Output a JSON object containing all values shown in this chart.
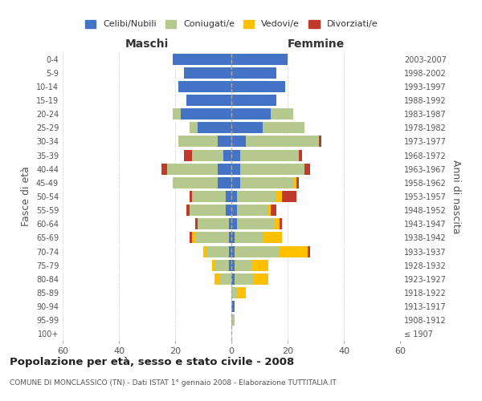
{
  "age_groups": [
    "100+",
    "95-99",
    "90-94",
    "85-89",
    "80-84",
    "75-79",
    "70-74",
    "65-69",
    "60-64",
    "55-59",
    "50-54",
    "45-49",
    "40-44",
    "35-39",
    "30-34",
    "25-29",
    "20-24",
    "15-19",
    "10-14",
    "5-9",
    "0-4"
  ],
  "birth_years": [
    "≤ 1907",
    "1908-1912",
    "1913-1917",
    "1918-1922",
    "1923-1927",
    "1928-1932",
    "1933-1937",
    "1938-1942",
    "1943-1947",
    "1948-1952",
    "1953-1957",
    "1958-1962",
    "1963-1967",
    "1968-1972",
    "1973-1977",
    "1978-1982",
    "1983-1987",
    "1988-1992",
    "1993-1997",
    "1998-2002",
    "2003-2007"
  ],
  "colors": {
    "celibi": "#4472c4",
    "coniugati": "#b5c98e",
    "vedovi": "#ffc000",
    "divorziati": "#c0392b"
  },
  "maschi": {
    "celibi": [
      0,
      0,
      0,
      0,
      0,
      1,
      1,
      1,
      1,
      2,
      2,
      5,
      5,
      3,
      5,
      12,
      18,
      16,
      19,
      17,
      21
    ],
    "coniugati": [
      0,
      0,
      0,
      0,
      4,
      5,
      8,
      12,
      11,
      13,
      12,
      16,
      18,
      11,
      14,
      3,
      3,
      0,
      0,
      0,
      0
    ],
    "vedovi": [
      0,
      0,
      0,
      0,
      2,
      1,
      1,
      1,
      0,
      0,
      0,
      0,
      0,
      0,
      0,
      0,
      0,
      0,
      0,
      0,
      0
    ],
    "divorziati": [
      0,
      0,
      0,
      0,
      0,
      0,
      0,
      1,
      1,
      1,
      1,
      0,
      2,
      3,
      0,
      0,
      0,
      0,
      0,
      0,
      0
    ]
  },
  "femmine": {
    "celibi": [
      0,
      0,
      1,
      0,
      1,
      1,
      1,
      1,
      2,
      2,
      2,
      3,
      3,
      3,
      5,
      11,
      14,
      16,
      19,
      16,
      20
    ],
    "coniugati": [
      0,
      1,
      0,
      2,
      7,
      6,
      16,
      10,
      13,
      11,
      14,
      19,
      23,
      21,
      26,
      15,
      8,
      0,
      0,
      0,
      0
    ],
    "vedovi": [
      0,
      0,
      0,
      3,
      5,
      6,
      10,
      7,
      2,
      1,
      2,
      1,
      0,
      0,
      0,
      0,
      0,
      0,
      0,
      0,
      0
    ],
    "divorziati": [
      0,
      0,
      0,
      0,
      0,
      0,
      1,
      0,
      1,
      2,
      5,
      1,
      2,
      1,
      1,
      0,
      0,
      0,
      0,
      0,
      0
    ]
  },
  "title": "Popolazione per età, sesso e stato civile - 2008",
  "subtitle": "COMUNE DI MONCLASSICO (TN) - Dati ISTAT 1° gennaio 2008 - Elaborazione TUTTITALIA.IT",
  "xlabel_left": "Maschi",
  "xlabel_right": "Femmine",
  "ylabel_left": "Fasce di età",
  "ylabel_right": "Anni di nascita",
  "xlim": 60,
  "legend_labels": [
    "Celibi/Nubili",
    "Coniugati/e",
    "Vedovi/e",
    "Divorziati/e"
  ]
}
